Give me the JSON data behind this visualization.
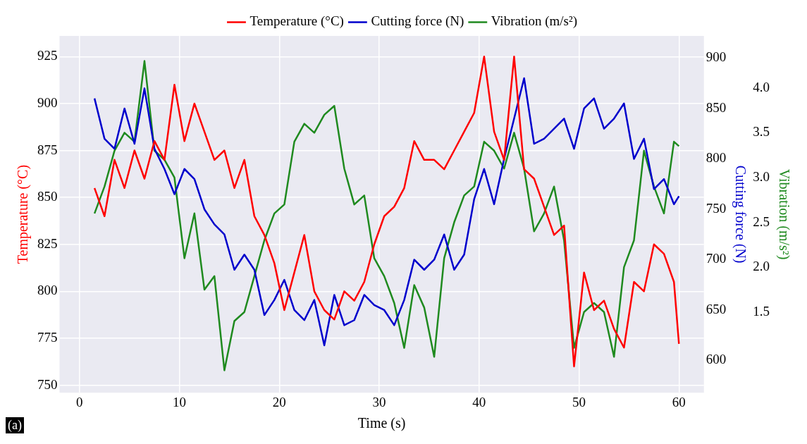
{
  "chart_data": {
    "type": "line",
    "xlabel": "Time (s)",
    "ylabel": "Temperature (°C)",
    "y2label": "Cutting force (N)",
    "y3label": "Vibration (m/s²)",
    "annotations": [
      "(a)"
    ],
    "x": [
      1.5,
      2.5,
      3.5,
      4.5,
      5.5,
      6.5,
      7.5,
      8.5,
      9.5,
      10.5,
      11.5,
      12.5,
      13.5,
      14.5,
      15.5,
      16.5,
      17.5,
      18.5,
      19.5,
      20.5,
      21.5,
      22.5,
      23.5,
      24.5,
      25.5,
      26.5,
      27.5,
      28.5,
      29.5,
      30.5,
      31.5,
      32.5,
      33.5,
      34.5,
      35.5,
      36.5,
      37.5,
      38.5,
      39.5,
      40.5,
      41.5,
      42.5,
      43.5,
      44.5,
      45.5,
      46.5,
      47.5,
      48.5,
      49.5,
      50.5,
      51.5,
      52.5,
      53.5,
      54.5,
      55.5,
      56.5,
      57.5,
      58.5,
      59.5,
      60
    ],
    "xlim": [
      -2,
      62.5
    ],
    "xticks": [
      0,
      10,
      20,
      30,
      40,
      50,
      60
    ],
    "ylim": [
      746,
      936
    ],
    "yticks": [
      750,
      775,
      800,
      825,
      850,
      875,
      900,
      925
    ],
    "y2lim": [
      568,
      922
    ],
    "y2ticks": [
      600,
      650,
      700,
      750,
      800,
      850,
      900
    ],
    "y3lim": [
      0.6,
      4.58
    ],
    "y3ticks": [
      1.5,
      {
        "value": 2,
        "label": "2.0"
      },
      2.5,
      {
        "value": 3,
        "label": "3.0"
      },
      3.5,
      {
        "value": 4,
        "label": "4.0"
      }
    ],
    "grid": true,
    "legend": "top",
    "marker": "none",
    "line_style": "solid",
    "series": [
      {
        "name": "Temperature (°C)",
        "color": "#ff0000",
        "values": [
          855,
          840,
          870,
          855,
          875,
          860,
          880,
          870,
          910,
          880,
          900,
          885,
          870,
          875,
          855,
          870,
          840,
          830,
          815,
          790,
          810,
          830,
          800,
          790,
          785,
          800,
          795,
          805,
          825,
          840,
          845,
          855,
          880,
          870,
          870,
          865,
          875,
          885,
          895,
          925,
          885,
          870,
          925,
          865,
          860,
          845,
          830,
          835,
          760,
          810,
          790,
          795,
          780,
          770,
          805,
          800,
          825,
          820,
          805,
          772
        ]
      },
      {
        "name": "Cutting force (N)",
        "color": "#0000cc",
        "axis": "y2",
        "values": [
          860,
          820,
          810,
          850,
          815,
          870,
          810,
          790,
          765,
          790,
          780,
          750,
          735,
          725,
          690,
          705,
          690,
          645,
          660,
          680,
          650,
          640,
          660,
          615,
          665,
          635,
          640,
          665,
          655,
          650,
          635,
          660,
          700,
          690,
          700,
          725,
          690,
          705,
          760,
          790,
          755,
          800,
          840,
          880,
          815,
          820,
          830,
          840,
          810,
          850,
          860,
          830,
          840,
          855,
          800,
          820,
          770,
          780,
          755,
          763
        ]
      },
      {
        "name": "Vibration (m/s²)",
        "color": "#1f8a1f",
        "axis": "y3",
        "values": [
          2.6,
          2.9,
          3.3,
          3.5,
          3.4,
          4.3,
          3.3,
          3.2,
          3.0,
          2.1,
          2.6,
          1.75,
          1.9,
          0.85,
          1.4,
          1.5,
          1.9,
          2.3,
          2.6,
          2.7,
          3.4,
          3.6,
          3.5,
          3.7,
          3.8,
          3.1,
          2.7,
          2.8,
          2.1,
          1.9,
          1.6,
          1.1,
          1.8,
          1.55,
          1.0,
          2.1,
          2.5,
          2.8,
          2.9,
          3.4,
          3.3,
          3.1,
          3.5,
          3.1,
          2.4,
          2.6,
          2.9,
          2.3,
          1.1,
          1.5,
          1.6,
          1.5,
          1.0,
          2.0,
          2.3,
          3.3,
          2.9,
          2.6,
          3.4,
          3.35
        ]
      }
    ]
  }
}
